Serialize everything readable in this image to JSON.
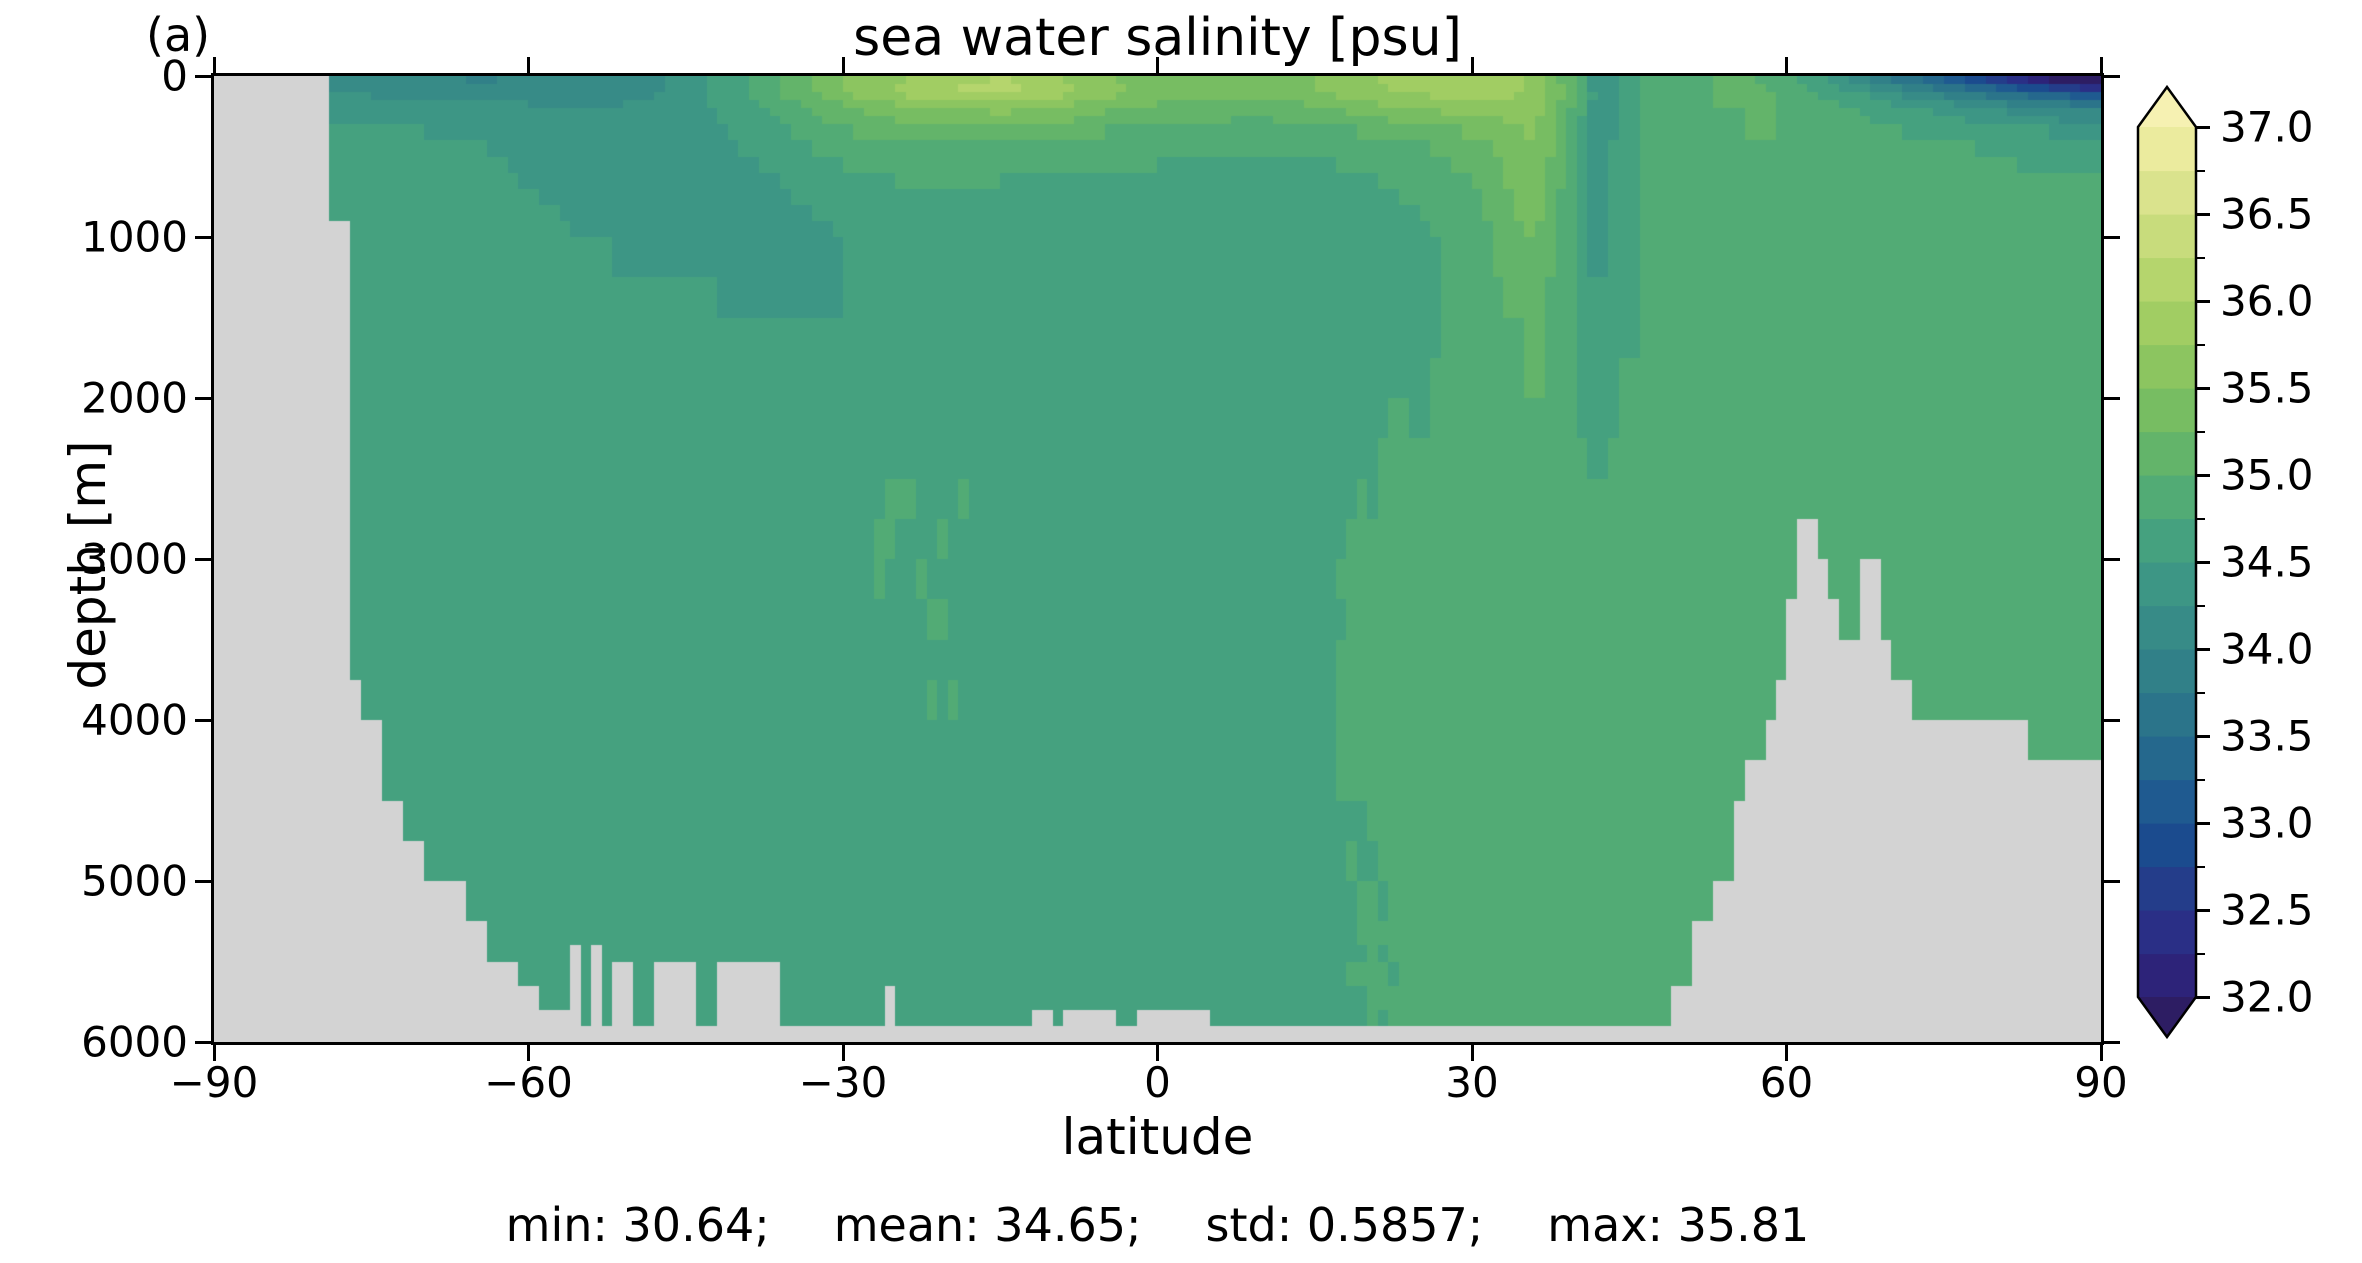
{
  "figure": {
    "panel_label": "(a)",
    "title": "sea water salinity [psu]",
    "xlabel": "latitude",
    "ylabel": "depth [m]",
    "stats": {
      "min": "min: 30.64;",
      "mean": "mean: 34.65;",
      "std": "std: 0.5857;",
      "max": "max: 35.81"
    }
  },
  "chart_data": {
    "type": "heatmap",
    "title": "sea water salinity [psu]",
    "xlabel": "latitude",
    "ylabel": "depth [m]",
    "units": "psu",
    "xlim": [
      -90,
      90
    ],
    "ylim": [
      0,
      6000
    ],
    "y_inverted": true,
    "grid_lines": false,
    "x_ticks": [
      -90,
      -60,
      -30,
      0,
      30,
      60,
      90
    ],
    "x_tick_labels": [
      "−90",
      "−60",
      "−30",
      "0",
      "30",
      "60",
      "90"
    ],
    "y_ticks": [
      0,
      1000,
      2000,
      3000,
      4000,
      5000,
      6000
    ],
    "y_tick_labels": [
      "0",
      "1000",
      "2000",
      "3000",
      "4000",
      "5000",
      "6000"
    ],
    "stats": {
      "min": 30.64,
      "mean": 34.65,
      "std": 0.5857,
      "max": 35.81
    },
    "land_color": "#d3d3d3",
    "colorbar": {
      "vmin": 32.0,
      "vmax": 37.0,
      "level_step": 0.25,
      "extend": "both",
      "major_ticks": [
        37.0,
        36.5,
        36.0,
        35.5,
        35.0,
        34.5,
        34.0,
        33.5,
        33.0,
        32.5,
        32.0
      ],
      "major_tick_labels": [
        "37.0",
        "36.5",
        "36.0",
        "35.5",
        "35.0",
        "34.5",
        "34.0",
        "33.5",
        "33.0",
        "32.5",
        "32.0"
      ],
      "minor_tick_step": 0.25
    },
    "colormap": {
      "name": "haline-like discrete",
      "under": "#2d1d63",
      "over": "#f6f1b2",
      "colors": [
        "#2d2379",
        "#2a2f86",
        "#243d8a",
        "#1b4b8e",
        "#1f5a90",
        "#25688d",
        "#2b748a",
        "#318088",
        "#378b87",
        "#3d9685",
        "#45a17f",
        "#52ab75",
        "#63b46a",
        "#77bd62",
        "#8cc560",
        "#a1cd63",
        "#b5d56d",
        "#c8dc7c",
        "#dae38d",
        "#ebeb9e"
      ]
    },
    "grid": {
      "lats": [
        -90,
        -85,
        -80,
        -75,
        -70,
        -65,
        -60,
        -55,
        -50,
        -45,
        -40,
        -35,
        -30,
        -25,
        -20,
        -15,
        -10,
        -5,
        0,
        5,
        10,
        15,
        20,
        25,
        28,
        31,
        34,
        36,
        38,
        40,
        42,
        44,
        47,
        50,
        53,
        56,
        59,
        62,
        65,
        68,
        72,
        76,
        80,
        84,
        87,
        90
      ],
      "depths": [
        0,
        100,
        200,
        400,
        700,
        1000,
        1500,
        2000,
        2500,
        3000,
        3500,
        4000,
        5000,
        6000
      ],
      "salinity": [
        [
          34.1,
          34.1,
          34.1,
          34.1,
          34.0,
          33.95,
          34.0,
          34.0,
          34.1,
          34.3,
          34.7,
          35.1,
          35.5,
          35.7,
          35.9,
          36.0,
          35.8,
          35.5,
          35.3,
          35.2,
          35.3,
          35.5,
          35.7,
          35.9,
          36.0,
          36.0,
          35.9,
          35.7,
          35.3,
          34.9,
          34.3,
          34.5,
          34.8,
          34.9,
          35.0,
          35.05,
          34.9,
          34.6,
          34.3,
          33.9,
          33.4,
          32.9,
          32.4,
          31.8,
          31.2,
          30.6
        ],
        [
          34.2,
          34.2,
          34.2,
          34.2,
          34.15,
          34.1,
          34.1,
          34.1,
          34.15,
          34.35,
          34.7,
          35.1,
          35.5,
          35.8,
          36.0,
          36.1,
          35.9,
          35.6,
          35.4,
          35.4,
          35.4,
          35.5,
          35.7,
          35.8,
          35.9,
          35.9,
          35.8,
          35.7,
          35.4,
          35.0,
          34.35,
          34.5,
          34.8,
          34.9,
          35.0,
          35.05,
          35.0,
          34.8,
          34.6,
          34.4,
          34.1,
          33.8,
          33.5,
          33.2,
          33.0,
          32.8
        ],
        [
          34.4,
          34.4,
          34.4,
          34.4,
          34.35,
          34.3,
          34.3,
          34.25,
          34.3,
          34.4,
          34.6,
          34.9,
          35.2,
          35.4,
          35.5,
          35.6,
          35.5,
          35.3,
          35.2,
          35.1,
          35.1,
          35.2,
          35.4,
          35.5,
          35.6,
          35.6,
          35.6,
          35.6,
          35.3,
          34.9,
          34.35,
          34.5,
          34.8,
          34.9,
          35.0,
          35.0,
          35.0,
          34.9,
          34.8,
          34.7,
          34.5,
          34.4,
          34.2,
          34.1,
          34.0,
          33.9
        ],
        [
          34.55,
          34.55,
          34.55,
          34.55,
          34.55,
          34.5,
          34.45,
          34.4,
          34.35,
          34.4,
          34.5,
          34.7,
          34.9,
          35.0,
          35.0,
          35.0,
          34.95,
          34.9,
          34.9,
          34.85,
          34.8,
          34.8,
          34.9,
          35.0,
          35.1,
          35.2,
          35.4,
          35.5,
          35.2,
          34.8,
          34.35,
          34.55,
          34.8,
          34.9,
          34.95,
          35.0,
          35.0,
          34.95,
          34.9,
          34.85,
          34.8,
          34.75,
          34.7,
          34.65,
          34.6,
          34.6
        ],
        [
          34.62,
          34.62,
          34.62,
          34.62,
          34.6,
          34.58,
          34.5,
          34.45,
          34.4,
          34.4,
          34.4,
          34.5,
          34.6,
          34.7,
          34.7,
          34.7,
          34.65,
          34.6,
          34.6,
          34.6,
          34.6,
          34.6,
          34.7,
          34.8,
          34.9,
          35.0,
          35.3,
          35.4,
          35.1,
          34.7,
          34.4,
          34.6,
          34.8,
          34.85,
          34.9,
          34.95,
          34.95,
          34.95,
          34.9,
          34.9,
          34.85,
          34.85,
          34.85,
          34.8,
          34.8,
          34.8
        ],
        [
          34.65,
          34.65,
          34.65,
          34.65,
          34.65,
          34.62,
          34.55,
          34.5,
          34.45,
          34.45,
          34.45,
          34.45,
          34.5,
          34.5,
          34.55,
          34.55,
          34.55,
          34.55,
          34.55,
          34.55,
          34.55,
          34.6,
          34.65,
          34.7,
          34.8,
          34.9,
          35.2,
          35.3,
          35.0,
          34.7,
          34.4,
          34.6,
          34.8,
          34.85,
          34.9,
          34.95,
          34.95,
          34.95,
          34.9,
          34.9,
          34.9,
          34.9,
          34.9,
          34.85,
          34.85,
          34.85
        ],
        [
          34.68,
          34.68,
          34.68,
          34.68,
          34.68,
          34.66,
          34.65,
          34.6,
          34.55,
          34.55,
          34.5,
          34.5,
          34.5,
          34.5,
          34.5,
          34.5,
          34.5,
          34.5,
          34.55,
          34.55,
          34.55,
          34.6,
          34.65,
          34.7,
          34.75,
          34.8,
          35.0,
          35.1,
          34.9,
          34.7,
          34.5,
          34.65,
          34.8,
          34.85,
          34.9,
          34.9,
          34.9,
          34.9,
          34.9,
          34.85,
          34.9,
          34.9,
          34.9,
          34.9,
          34.9,
          34.9
        ],
        [
          34.7,
          34.7,
          34.7,
          34.7,
          34.7,
          34.7,
          34.7,
          34.68,
          34.65,
          34.65,
          34.6,
          34.6,
          34.6,
          34.6,
          34.6,
          34.6,
          34.6,
          34.6,
          34.6,
          34.6,
          34.65,
          34.65,
          34.7,
          34.75,
          34.8,
          34.85,
          34.95,
          35.0,
          34.9,
          34.75,
          34.6,
          34.75,
          34.85,
          34.85,
          34.9,
          34.9,
          34.9,
          34.9,
          34.85,
          34.85,
          34.9,
          34.9,
          34.9,
          34.9,
          34.9,
          34.9
        ],
        [
          34.7,
          34.7,
          34.7,
          34.7,
          34.7,
          34.7,
          34.7,
          34.7,
          34.7,
          34.7,
          34.7,
          34.7,
          34.7,
          34.75,
          34.75,
          34.7,
          34.7,
          34.7,
          34.7,
          34.7,
          34.7,
          34.7,
          34.75,
          34.8,
          34.85,
          34.9,
          34.9,
          34.9,
          34.85,
          34.8,
          34.75,
          34.8,
          34.85,
          34.85,
          34.85,
          34.85,
          34.9,
          34.9,
          34.85,
          34.85,
          34.9,
          34.9,
          34.9,
          34.9,
          34.9,
          34.9
        ],
        [
          34.7,
          34.7,
          34.7,
          34.7,
          34.7,
          34.7,
          34.7,
          34.7,
          34.7,
          34.7,
          34.7,
          34.7,
          34.7,
          34.75,
          34.75,
          34.7,
          34.7,
          34.7,
          34.7,
          34.7,
          34.7,
          34.7,
          34.8,
          34.85,
          34.9,
          34.9,
          34.9,
          34.9,
          34.85,
          34.85,
          34.85,
          34.85,
          34.85,
          34.85,
          34.85,
          34.85,
          34.9,
          34.9,
          34.85,
          34.85,
          34.9,
          34.9,
          34.85,
          34.85,
          34.85,
          34.85
        ],
        [
          34.7,
          34.7,
          34.7,
          34.7,
          34.7,
          34.7,
          34.7,
          34.7,
          34.7,
          34.7,
          34.7,
          34.7,
          34.7,
          34.7,
          34.75,
          34.7,
          34.7,
          34.7,
          34.7,
          34.7,
          34.7,
          34.7,
          34.8,
          34.85,
          34.85,
          34.9,
          34.9,
          34.9,
          34.85,
          34.85,
          34.85,
          34.85,
          34.85,
          34.85,
          34.85,
          34.85,
          34.85,
          34.9,
          34.85,
          34.85,
          34.85,
          34.85,
          34.85,
          34.85,
          34.85,
          34.85
        ],
        [
          34.7,
          34.7,
          34.7,
          34.7,
          34.7,
          34.7,
          34.7,
          34.7,
          34.7,
          34.7,
          34.7,
          34.7,
          34.7,
          34.7,
          34.75,
          34.7,
          34.7,
          34.7,
          34.7,
          34.7,
          34.7,
          34.7,
          34.8,
          34.8,
          34.85,
          34.85,
          34.85,
          34.85,
          34.85,
          34.85,
          34.85,
          34.85,
          34.85,
          34.85,
          34.85,
          34.85,
          34.85,
          34.85,
          34.85,
          34.85,
          34.85,
          34.85,
          34.85,
          34.85,
          34.85,
          34.85
        ],
        [
          34.7,
          34.7,
          34.7,
          34.7,
          34.7,
          34.7,
          34.7,
          34.7,
          34.7,
          34.7,
          34.7,
          34.7,
          34.7,
          34.7,
          34.7,
          34.7,
          34.7,
          34.7,
          34.7,
          34.7,
          34.7,
          34.7,
          34.75,
          34.8,
          34.8,
          34.8,
          34.8,
          34.8,
          34.8,
          34.8,
          34.8,
          34.8,
          34.8,
          34.8,
          34.85,
          34.85,
          34.85,
          34.85,
          34.85,
          34.85,
          34.85,
          34.85,
          34.85,
          34.85,
          34.85,
          34.85
        ],
        [
          34.7,
          34.7,
          34.7,
          34.7,
          34.7,
          34.7,
          34.7,
          34.7,
          34.7,
          34.7,
          34.7,
          34.7,
          34.7,
          34.7,
          34.7,
          34.7,
          34.7,
          34.7,
          34.7,
          34.7,
          34.7,
          34.7,
          34.75,
          34.75,
          34.8,
          34.8,
          34.8,
          34.8,
          34.8,
          34.8,
          34.8,
          34.8,
          34.8,
          34.8,
          34.8,
          34.8,
          34.8,
          34.8,
          34.8,
          34.8,
          34.8,
          34.8,
          34.8,
          34.8,
          34.8,
          34.8
        ]
      ]
    },
    "land_mask": {
      "antarctic_coast": [
        [
          0,
          950,
          -78.6
        ],
        [
          950,
          3800,
          -76.8
        ],
        [
          3800,
          4100,
          -75.5
        ],
        [
          4100,
          4400,
          -74
        ],
        [
          4400,
          4700,
          -72
        ],
        [
          4700,
          4900,
          -70
        ],
        [
          4900,
          5100,
          -68
        ],
        [
          5100,
          5300,
          -66
        ],
        [
          5300,
          5500,
          -63.5
        ],
        [
          5500,
          5650,
          -61
        ],
        [
          5650,
          5800,
          -58.5
        ],
        [
          5800,
          5900,
          -56
        ],
        [
          5900,
          6001,
          -56
        ]
      ],
      "arctic_ranges": [
        [
          2850,
          3100,
          [
            [
              61.2,
              62.8
            ]
          ]
        ],
        [
          3100,
          3300,
          [
            [
              60.8,
              64
            ],
            [
              67.3,
              68.7
            ]
          ]
        ],
        [
          3300,
          3500,
          [
            [
              60.3,
              64.6
            ],
            [
              66.8,
              69.3
            ]
          ]
        ],
        [
          3500,
          3700,
          [
            [
              59.7,
              69.8
            ]
          ]
        ],
        [
          3700,
          3950,
          [
            [
              59.2,
              72
            ]
          ]
        ],
        [
          3950,
          4300,
          [
            [
              57.8,
              82.5
            ]
          ]
        ],
        [
          4300,
          4400,
          [
            [
              56.5,
              90
            ]
          ]
        ],
        [
          4400,
          4900,
          [
            [
              55,
              90
            ]
          ]
        ],
        [
          4900,
          5300,
          [
            [
              53,
              90
            ]
          ]
        ],
        [
          5300,
          5700,
          [
            [
              51,
              90
            ]
          ]
        ],
        [
          5700,
          5900,
          [
            [
              49.5,
              90
            ]
          ]
        ],
        [
          5900,
          6001,
          [
            [
              -58,
              90
            ]
          ]
        ]
      ],
      "bottom_patches": [
        [
          5400,
          6001,
          [
            [
              -55.5,
              -54.8
            ],
            [
              -53.8,
              -53.2
            ]
          ]
        ],
        [
          5500,
          6001,
          [
            [
              -51.6,
              -49.6
            ],
            [
              -47.5,
              -44.5
            ]
          ]
        ],
        [
          5550,
          6001,
          [
            [
              -41.5,
              -36
            ]
          ]
        ],
        [
          5700,
          6001,
          [
            [
              -25.7,
              -24.9
            ]
          ]
        ],
        [
          5750,
          6001,
          [
            [
              -12,
              -9.8
            ],
            [
              -8.7,
              -4.3
            ],
            [
              -2.2,
              5.2
            ]
          ]
        ]
      ]
    }
  }
}
